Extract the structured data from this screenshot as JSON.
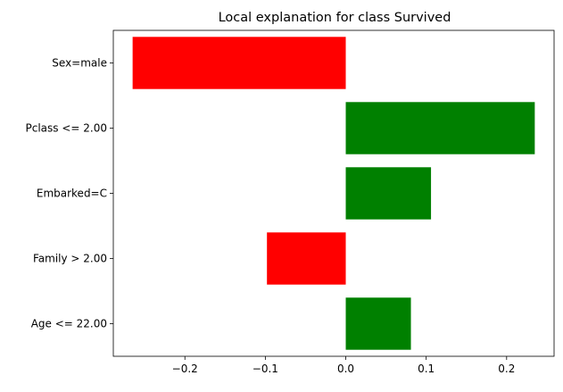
{
  "chart_data": {
    "type": "bar",
    "orientation": "horizontal",
    "title": "Local explanation for class Survived",
    "xlabel": "",
    "ylabel": "",
    "categories": [
      "Sex=male",
      "Pclass <= 2.00",
      "Embarked=C",
      "Family > 2.00",
      "Age <= 22.00"
    ],
    "values": [
      -0.265,
      0.235,
      0.106,
      -0.098,
      0.081
    ],
    "colors": [
      "#ff0000",
      "#008000",
      "#008000",
      "#ff0000",
      "#008000"
    ],
    "xlim": [
      -0.289,
      0.259
    ],
    "xticks": [
      -0.2,
      -0.1,
      0.0,
      0.1,
      0.2
    ],
    "xtick_labels": [
      "−0.2",
      "−0.1",
      "0.0",
      "0.1",
      "0.2"
    ],
    "grid": false,
    "legend": "none"
  }
}
